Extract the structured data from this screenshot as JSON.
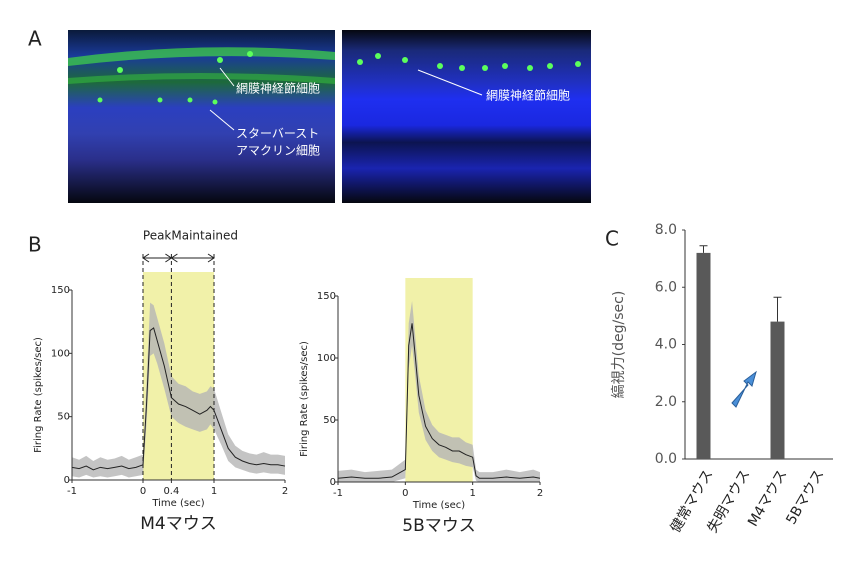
{
  "panel_labels": [
    "A",
    "B",
    "C"
  ],
  "image_annotations": {
    "left": [
      "網膜神経節細胞",
      "スターバースト",
      "アマクリン細胞"
    ],
    "right": [
      "網膜神経節細胞"
    ]
  },
  "chart_data": [
    {
      "type": "line",
      "title": "M4マウス",
      "xlabel": "Time (sec)",
      "ylabel": "Firing Rate (spikes/sec)",
      "annotations": [
        "Peak",
        "Maintained"
      ],
      "phase_bounds": [
        0,
        0.4,
        1
      ],
      "stimulus": [
        0,
        1
      ],
      "xlim": [
        -1,
        2
      ],
      "xticks": [
        -1,
        0,
        0.4,
        1,
        2
      ],
      "ylim": [
        0,
        150
      ],
      "yticks": [
        0,
        50,
        100,
        150
      ],
      "color": "#222222",
      "band_color": "#b5b5b5",
      "stimulus_color": "#eeee9a",
      "x": [
        -1,
        -0.9,
        -0.8,
        -0.7,
        -0.6,
        -0.5,
        -0.4,
        -0.3,
        -0.2,
        -0.1,
        0,
        0.05,
        0.1,
        0.15,
        0.2,
        0.3,
        0.4,
        0.5,
        0.6,
        0.7,
        0.8,
        0.9,
        0.95,
        1,
        1.1,
        1.2,
        1.3,
        1.4,
        1.5,
        1.6,
        1.7,
        1.8,
        1.9,
        2
      ],
      "values": [
        10,
        9,
        11,
        8,
        10,
        9,
        10,
        11,
        9,
        10,
        12,
        60,
        118,
        120,
        110,
        90,
        65,
        60,
        58,
        55,
        52,
        55,
        58,
        55,
        40,
        25,
        18,
        15,
        13,
        12,
        13,
        12,
        12,
        11
      ],
      "lower": [
        3,
        2,
        4,
        2,
        3,
        2,
        3,
        4,
        2,
        3,
        4,
        45,
        98,
        100,
        92,
        72,
        50,
        45,
        42,
        40,
        38,
        40,
        44,
        40,
        28,
        15,
        10,
        8,
        6,
        5,
        6,
        5,
        5,
        4
      ],
      "upper": [
        18,
        16,
        19,
        15,
        18,
        16,
        17,
        19,
        16,
        18,
        20,
        78,
        140,
        138,
        128,
        108,
        82,
        76,
        74,
        70,
        68,
        70,
        74,
        72,
        54,
        36,
        27,
        23,
        21,
        20,
        22,
        20,
        20,
        19
      ]
    },
    {
      "type": "line",
      "title": "5Bマウス",
      "xlabel": "Time (sec)",
      "ylabel": "Firing Rate (spikes/sec)",
      "stimulus": [
        0,
        1
      ],
      "xlim": [
        -1,
        2
      ],
      "xticks": [
        -1,
        0,
        1,
        2
      ],
      "ylim": [
        0,
        150
      ],
      "yticks": [
        0,
        50,
        100,
        150
      ],
      "color": "#222222",
      "band_color": "#b5b5b5",
      "stimulus_color": "#eeee9a",
      "x": [
        -1,
        -0.8,
        -0.6,
        -0.4,
        -0.2,
        0,
        0.05,
        0.1,
        0.15,
        0.2,
        0.3,
        0.4,
        0.5,
        0.6,
        0.7,
        0.8,
        0.9,
        1,
        1.05,
        1.1,
        1.3,
        1.5,
        1.7,
        1.9,
        2
      ],
      "values": [
        3,
        4,
        3,
        3,
        4,
        10,
        110,
        128,
        100,
        70,
        45,
        35,
        30,
        28,
        25,
        25,
        22,
        20,
        5,
        3,
        3,
        4,
        3,
        4,
        3
      ],
      "lower": [
        0,
        0,
        0,
        0,
        0,
        3,
        92,
        110,
        84,
        56,
        34,
        25,
        20,
        18,
        16,
        15,
        13,
        12,
        1,
        0,
        0,
        0,
        0,
        0,
        0
      ],
      "upper": [
        9,
        10,
        8,
        9,
        10,
        18,
        128,
        146,
        116,
        86,
        58,
        46,
        40,
        38,
        36,
        36,
        32,
        30,
        10,
        8,
        8,
        10,
        8,
        10,
        8
      ]
    },
    {
      "type": "bar",
      "ylabel": "縞視力(deg/sec)",
      "categories": [
        "健常マウス",
        "失明マウス",
        "M4マウス",
        "5Bマウス"
      ],
      "values": [
        7.2,
        0,
        4.8,
        0
      ],
      "errors": [
        0.25,
        0,
        0.85,
        0
      ],
      "color": "#595959",
      "ylim": [
        0,
        8
      ],
      "yticks": [
        {
          "value": 0,
          "label": "0.0"
        },
        {
          "value": 2,
          "label": "2.0"
        },
        {
          "value": 4,
          "label": "4.0"
        },
        {
          "value": 6,
          "label": "6.0"
        },
        {
          "value": 8,
          "label": "8.0"
        }
      ]
    }
  ]
}
